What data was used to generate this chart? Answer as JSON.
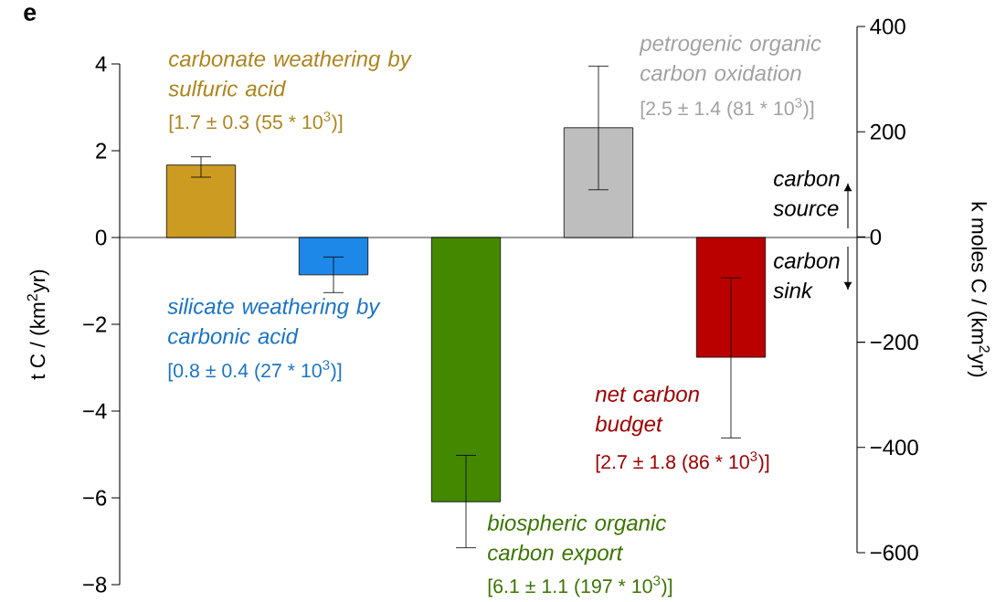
{
  "chart_data": {
    "type": "bar",
    "categories": [
      null,
      null,
      null,
      null,
      null
    ],
    "values": [
      1.67,
      -0.86,
      -6.09,
      2.53,
      -2.76
    ],
    "colors": [
      "#cc9b22",
      "#1e88e8",
      "#448800",
      "#bebebe",
      "#bb0000"
    ],
    "errors": [
      [
        1.39,
        1.86
      ],
      [
        -1.27,
        -0.45
      ],
      [
        -7.15,
        -5.02
      ],
      [
        1.1,
        3.95
      ],
      [
        -4.62,
        -0.93
      ]
    ],
    "ylabel": "t C / (km$^{2}$yr)",
    "y2label": "k moles C / (km$^{2}$yr)",
    "ylim": [
      -8,
      4
    ],
    "yticks": [
      {
        "value": -8,
        "label": "−8"
      },
      {
        "value": -6,
        "label": "−6"
      },
      {
        "value": -4,
        "label": "−4"
      },
      {
        "value": -2,
        "label": "−2"
      },
      0,
      2,
      4
    ],
    "y2lim": [
      -600,
      400
    ],
    "y2ticks": [
      {
        "value": -600,
        "label": "−600"
      },
      {
        "value": -400,
        "label": "−400"
      },
      {
        "value": -200,
        "label": "−200"
      },
      0,
      200,
      400
    ],
    "ref_lines": [
      {
        "axis": "y",
        "value": 0
      }
    ],
    "annotations": [
      "e",
      "carbonate weathering by sulfuric acid",
      "silicate weathering by carbonic acid",
      "biospheric organic carbon export",
      "petrogenic organic carbon oxidation",
      "net carbon budget",
      "[1.7 ± 0.3 (55 * 10$^{3}$)]",
      "[0.8 ± 0.4 (27 * 10$^{3}$)]",
      "[6.1 ± 1.1 (197 * 10$^{3}$)]",
      "[2.5 ± 1.4 (81 * 10$^{3}$)]",
      "[2.7 ± 1.8 (86 * 10$^{3}$)]",
      "carbon source",
      "carbon sink"
    ]
  }
}
